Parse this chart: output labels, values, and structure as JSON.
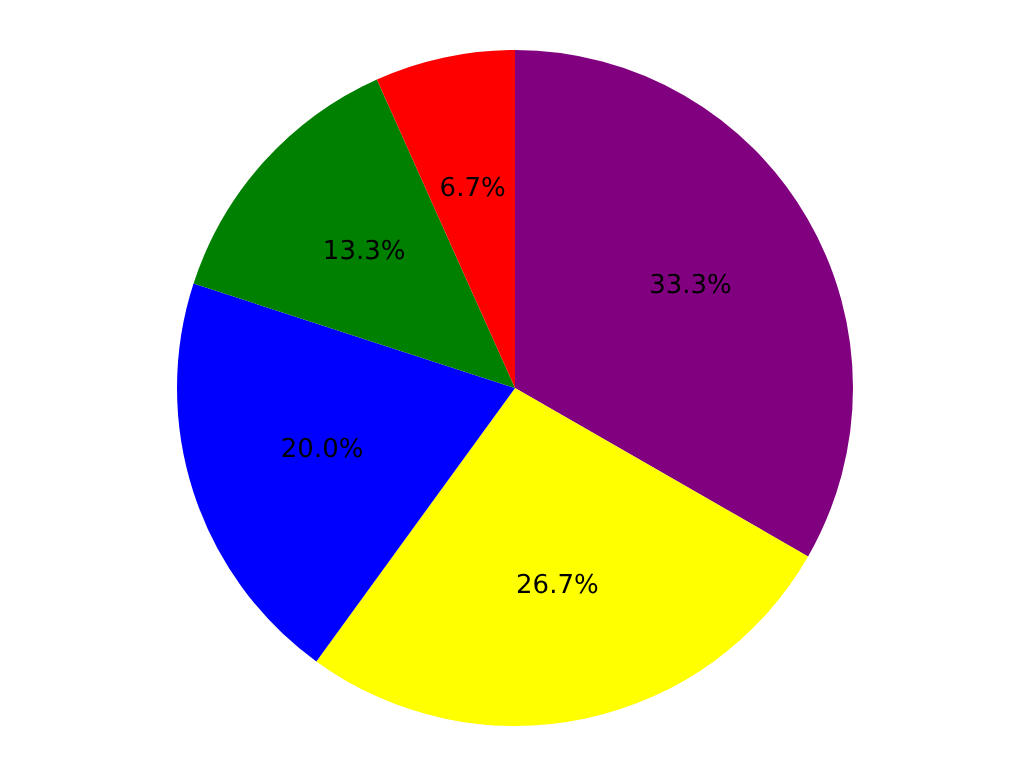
{
  "chart_data": {
    "type": "pie",
    "categories": [
      null,
      null,
      null,
      null,
      null
    ],
    "values": [
      33.3,
      26.7,
      20.0,
      13.3,
      6.7
    ],
    "colors": [
      "#800080",
      "#ffff00",
      "#0000ff",
      "#008000",
      "#ff0000"
    ],
    "value_labels": [
      "33.3%",
      "26.7%",
      "20.0%",
      "13.3%",
      "6.7%"
    ],
    "legend": false
  }
}
